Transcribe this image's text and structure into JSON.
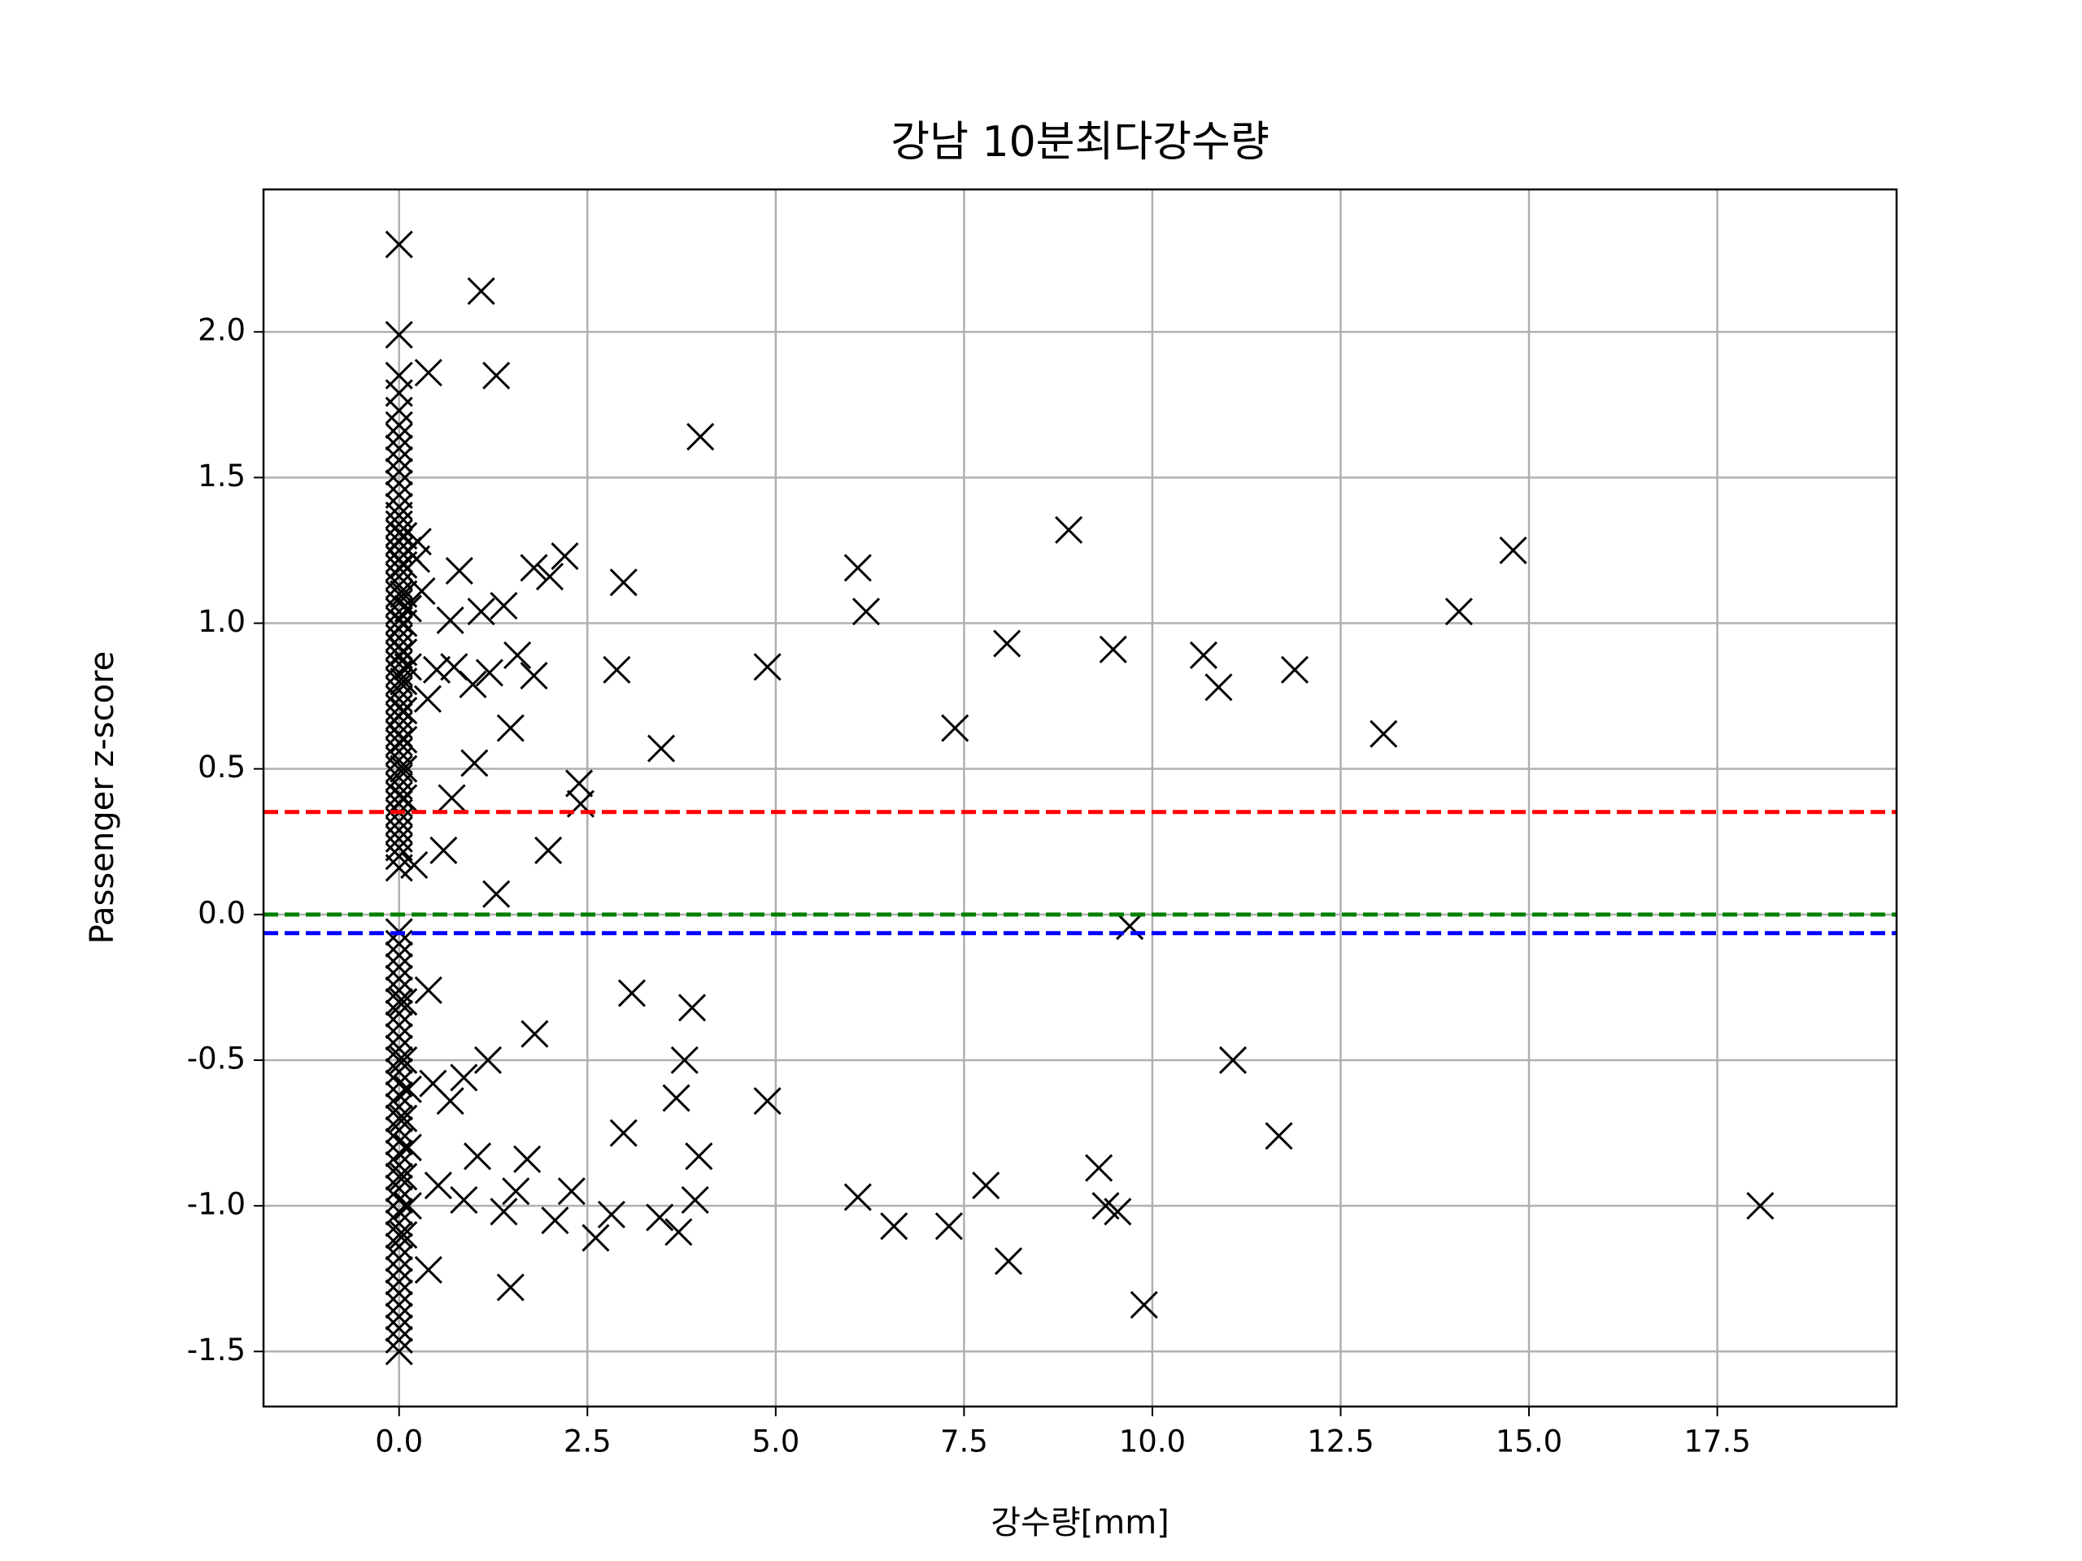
{
  "chart_data": {
    "type": "scatter",
    "title": "강남 10분최다강수량",
    "x_label": "강수량[mm]",
    "y_label": "Passenger z-score",
    "marker": "x",
    "color": "#000000",
    "grid": true,
    "xlim": [
      -1.8,
      19.88
    ],
    "ylim": [
      -1.689,
      2.489
    ],
    "xticks": [
      {
        "value": 0,
        "label": "0.0"
      },
      {
        "value": 2.5,
        "label": "2.5"
      },
      {
        "value": 5,
        "label": "5.0"
      },
      {
        "value": 7.5,
        "label": "7.5"
      },
      {
        "value": 10,
        "label": "10.0"
      },
      {
        "value": 12.5,
        "label": "12.5"
      },
      {
        "value": 15,
        "label": "15.0"
      },
      {
        "value": 17.5,
        "label": "17.5"
      }
    ],
    "yticks": [
      {
        "value": -1.5,
        "label": "-1.5"
      },
      {
        "value": -1,
        "label": "-1.0"
      },
      {
        "value": -0.5,
        "label": "-0.5"
      },
      {
        "value": 0,
        "label": "0.0"
      },
      {
        "value": 0.5,
        "label": "0.5"
      },
      {
        "value": 1,
        "label": "1.0"
      },
      {
        "value": 1.5,
        "label": "1.5"
      },
      {
        "value": 2,
        "label": "2.0"
      }
    ],
    "hlines": [
      {
        "y": 0.352,
        "color": "#ff0000"
      },
      {
        "y": 0,
        "color": "#008000"
      },
      {
        "y": -0.064,
        "color": "#0000ff"
      }
    ],
    "x": [
      0,
      0,
      0,
      0,
      0,
      0,
      0,
      0,
      0,
      0,
      0,
      0,
      0,
      0,
      0,
      0,
      0,
      0,
      0,
      0,
      0,
      0,
      0,
      0,
      0,
      0,
      0,
      0,
      0,
      0,
      0,
      0,
      0,
      0,
      0,
      0,
      0,
      0,
      0,
      0,
      0,
      0,
      0,
      0,
      0,
      0,
      0,
      0,
      0,
      0,
      0,
      0,
      0,
      0,
      0,
      0,
      0,
      0,
      0,
      0,
      0,
      0,
      0,
      0,
      0,
      0,
      0,
      0,
      0,
      0,
      0,
      0,
      0,
      0,
      0,
      0,
      0,
      0,
      0,
      0,
      0,
      0,
      0,
      0,
      0,
      0,
      0,
      0,
      0,
      0,
      0,
      0.06,
      0.06,
      0.06,
      0.06,
      0.06,
      0.06,
      0.06,
      0.06,
      0.06,
      0.06,
      0.06,
      0.06,
      0.06,
      0.06,
      0.06,
      0.12,
      0.12,
      0.12,
      0.12,
      0.12,
      0.12,
      1.09,
      1.29,
      0.39,
      4.0,
      8.89,
      14.79,
      6.09,
      6.2,
      14.07,
      2.98,
      2.2,
      1.79,
      2.0,
      0.8,
      1.39,
      1.09,
      0.68,
      8.07,
      9.48,
      10.68,
      10.88,
      11.89,
      4.89,
      2.89,
      1.57,
      1.79,
      1.2,
      0.98,
      0.73,
      0.5,
      0.38,
      7.38,
      13.07,
      1.48,
      3.48,
      1.0,
      2.39,
      2.41,
      0.7,
      1.98,
      0.59,
      1.29,
      9.7,
      0.39,
      3.09,
      3.89,
      1.8,
      11.07,
      1.18,
      3.79,
      0.86,
      0.45,
      3.68,
      4.89,
      0.68,
      11.68,
      2.98,
      3.98,
      1.7,
      1.04,
      9.29,
      7.79,
      6.09,
      2.29,
      1.55,
      0.86,
      0.52,
      18.07,
      3.93,
      2.82,
      2.07,
      1.39,
      9.38,
      9.54,
      6.57,
      7.3,
      2.61,
      3.46,
      3.71,
      8.09,
      0.39,
      1.48,
      9.89,
      0.25,
      0.23,
      0.3,
      0.2
    ],
    "y": [
      2.3,
      1.99,
      1.85,
      1.79,
      1.73,
      1.68,
      1.64,
      1.6,
      1.56,
      1.52,
      1.48,
      1.44,
      1.4,
      1.37,
      1.34,
      1.31,
      1.28,
      1.25,
      1.22,
      1.19,
      1.16,
      1.13,
      1.1,
      1.07,
      1.04,
      1.01,
      0.98,
      0.95,
      0.92,
      0.89,
      0.86,
      0.83,
      0.8,
      0.77,
      0.74,
      0.71,
      0.68,
      0.65,
      0.62,
      0.59,
      0.56,
      0.53,
      0.5,
      0.47,
      0.44,
      0.41,
      0.38,
      0.35,
      0.32,
      0.29,
      0.26,
      0.23,
      0.2,
      0.16,
      -0.06,
      -0.1,
      -0.14,
      -0.18,
      -0.22,
      -0.26,
      -0.3,
      -0.34,
      -0.38,
      -0.42,
      -0.46,
      -0.5,
      -0.54,
      -0.58,
      -0.62,
      -0.66,
      -0.7,
      -0.74,
      -0.78,
      -0.82,
      -0.86,
      -0.9,
      -0.94,
      -0.98,
      -1.02,
      -1.06,
      -1.1,
      -1.14,
      -1.18,
      -1.22,
      -1.26,
      -1.3,
      -1.34,
      -1.38,
      -1.42,
      -1.46,
      -1.5,
      1.3,
      1.2,
      1.1,
      1.0,
      0.9,
      0.8,
      0.7,
      0.6,
      0.5,
      0.4,
      -0.3,
      -0.5,
      -0.7,
      -0.9,
      -1.1,
      1.25,
      1.05,
      0.85,
      -0.6,
      -0.8,
      -1.0,
      2.14,
      1.85,
      1.86,
      1.64,
      1.32,
      1.25,
      1.19,
      1.04,
      1.04,
      1.14,
      1.23,
      1.19,
      1.16,
      1.18,
      1.06,
      1.04,
      1.01,
      0.93,
      0.91,
      0.89,
      0.78,
      0.84,
      0.85,
      0.84,
      0.89,
      0.82,
      0.83,
      0.79,
      0.85,
      0.84,
      0.74,
      0.64,
      0.62,
      0.64,
      0.57,
      0.52,
      0.45,
      0.38,
      0.4,
      0.22,
      0.22,
      0.07,
      -0.04,
      -0.26,
      -0.27,
      -0.32,
      -0.41,
      -0.5,
      -0.5,
      -0.5,
      -0.56,
      -0.58,
      -0.63,
      -0.64,
      -0.64,
      -0.76,
      -0.75,
      -0.83,
      -0.84,
      -0.83,
      -0.87,
      -0.93,
      -0.97,
      -0.95,
      -0.95,
      -0.98,
      -0.93,
      -1.0,
      -0.98,
      -1.03,
      -1.05,
      -1.02,
      -1.0,
      -1.02,
      -1.07,
      -1.07,
      -1.11,
      -1.04,
      -1.09,
      -1.19,
      -1.22,
      -1.28,
      -1.34,
      1.28,
      1.22,
      1.11,
      0.17
    ]
  }
}
